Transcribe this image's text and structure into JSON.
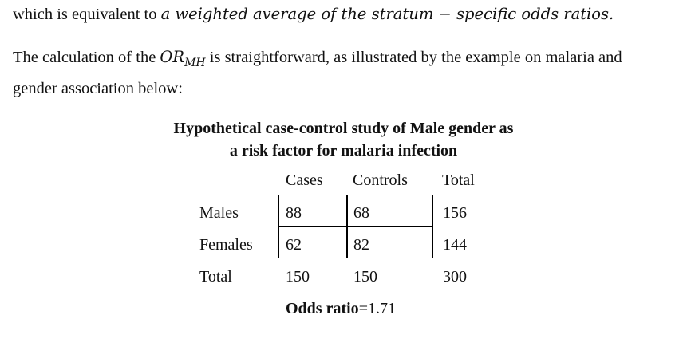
{
  "text": {
    "line1_prefix": "which is equivalent to",
    "line1_math": "a weighted average of the stratum − specific odds ratios.",
    "line2_prefix": "The calculation of the",
    "line2_math_base": "OR",
    "line2_math_sub": "MH",
    "line2_suffix": "is straightforward, as illustrated by the example on malaria and",
    "line3": "gender association below:"
  },
  "table": {
    "caption_line1": "Hypothetical case-control study of Male gender as",
    "caption_line2": "a risk factor for malaria infection",
    "columns": [
      "Cases",
      "Controls",
      "Total"
    ],
    "rows": [
      {
        "label": "Males",
        "cases": "88",
        "controls": "68",
        "total": "156"
      },
      {
        "label": "Females",
        "cases": "62",
        "controls": "82",
        "total": "144"
      },
      {
        "label": "Total",
        "cases": "150",
        "controls": "150",
        "total": "300"
      }
    ],
    "odds_ratio_label": "Odds ratio",
    "odds_ratio_value": "=1.71"
  }
}
